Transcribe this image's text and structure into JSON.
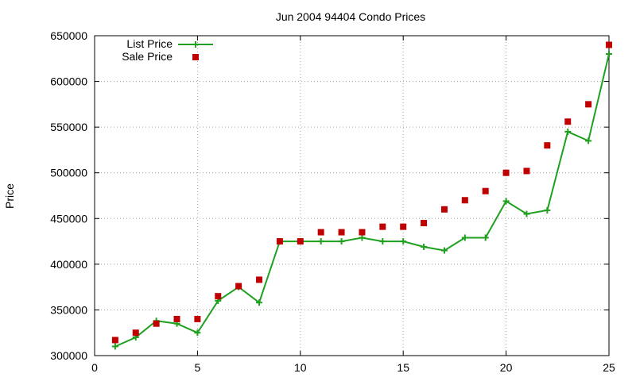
{
  "chart_data": {
    "type": "line",
    "title": "Jun 2004 94404 Condo Prices",
    "xlabel": "",
    "ylabel": "Price",
    "xlim": [
      0,
      25
    ],
    "ylim": [
      300000,
      650000
    ],
    "xticks": [
      0,
      5,
      10,
      15,
      20,
      25
    ],
    "yticks": [
      300000,
      350000,
      400000,
      450000,
      500000,
      550000,
      600000,
      650000
    ],
    "grid": true,
    "legend_position": "top-left",
    "x": [
      1,
      2,
      3,
      4,
      5,
      6,
      7,
      8,
      9,
      10,
      11,
      12,
      13,
      14,
      15,
      16,
      17,
      18,
      19,
      20,
      21,
      22,
      23,
      24,
      25
    ],
    "series": [
      {
        "name": "List Price",
        "style": "line-with-plus-markers",
        "color": "#1fa01f",
        "values": [
          310000,
          320000,
          338000,
          335000,
          325000,
          360000,
          375000,
          358000,
          425000,
          425000,
          425000,
          425000,
          429000,
          425000,
          425000,
          419000,
          415000,
          429000,
          429000,
          469000,
          455000,
          459000,
          545000,
          535000,
          630000
        ]
      },
      {
        "name": "Sale Price",
        "style": "square-markers",
        "color": "#c00000",
        "values": [
          317000,
          325000,
          335000,
          340000,
          340000,
          365000,
          376000,
          383000,
          425000,
          425000,
          435000,
          435000,
          435000,
          441000,
          441000,
          445000,
          460000,
          470000,
          480000,
          500000,
          502000,
          530000,
          556000,
          575000,
          640000
        ]
      }
    ]
  }
}
